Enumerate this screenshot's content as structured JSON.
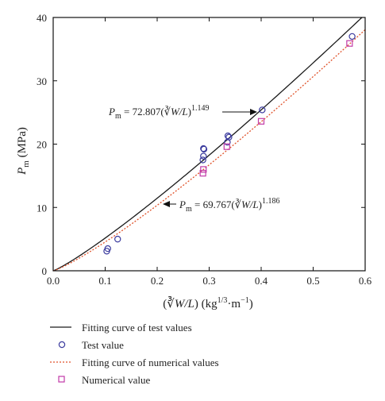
{
  "chart_data": {
    "type": "scatter",
    "xlim": [
      0,
      0.6
    ],
    "ylim": [
      0,
      40
    ],
    "x_ticks": [
      "0.0",
      "0.1",
      "0.2",
      "0.3",
      "0.4",
      "0.5",
      "0.6"
    ],
    "y_ticks": [
      "0",
      "10",
      "20",
      "30",
      "40"
    ],
    "x_tick_values": [
      0,
      0.1,
      0.2,
      0.3,
      0.4,
      0.5,
      0.6
    ],
    "y_tick_values": [
      0,
      10,
      20,
      30,
      40
    ],
    "xlabel": "(∛W/L) (kg1/3·m−1)",
    "ylabel": "Pm (MPa)",
    "grid": false,
    "legend_position": "below",
    "series": [
      {
        "name": "Fitting curve of test values",
        "kind": "line",
        "style": "solid",
        "color": "#1a1a1a",
        "equation": {
          "coef": 72.807,
          "exp": 1.149
        }
      },
      {
        "name": "Test value",
        "kind": "scatter",
        "marker": "circle",
        "color": "#3b3b9e",
        "points": [
          [
            0.103,
            3.1
          ],
          [
            0.105,
            3.5
          ],
          [
            0.124,
            5.0
          ],
          [
            0.288,
            17.5
          ],
          [
            0.289,
            18.1
          ],
          [
            0.289,
            19.3
          ],
          [
            0.29,
            19.2
          ],
          [
            0.335,
            20.3
          ],
          [
            0.336,
            21.3
          ],
          [
            0.338,
            21.1
          ],
          [
            0.402,
            25.4
          ],
          [
            0.575,
            37.0
          ]
        ]
      },
      {
        "name": "Fitting curve of numerical values",
        "kind": "line",
        "style": "dotted",
        "color": "#e0522a",
        "equation": {
          "coef": 69.767,
          "exp": 1.186
        }
      },
      {
        "name": "Numerical value",
        "kind": "scatter",
        "marker": "square",
        "color": "#c23aa8",
        "points": [
          [
            0.288,
            15.4
          ],
          [
            0.289,
            16.0
          ],
          [
            0.334,
            19.6
          ],
          [
            0.4,
            23.6
          ],
          [
            0.57,
            35.9
          ]
        ]
      }
    ],
    "annotations": [
      {
        "text_lhs": "Pm",
        "text_coef": "= 72.807(",
        "text_root": "∛W/L",
        "text_exp": ")1.149",
        "arrow_to": [
          0.405,
          25.4
        ]
      },
      {
        "text_lhs": "Pm",
        "text_coef": "= 69.767(",
        "text_root": "∛W/L",
        "text_exp": ")1.186",
        "arrow_to": [
          0.215,
          10.8
        ]
      }
    ]
  },
  "labels": {
    "ylabel_main": "P",
    "ylabel_sub": "m",
    "ylabel_unit": " (MPa)",
    "xlabel_paren": "(∛",
    "xlabel_var": "W/L",
    "xlabel_close": ")",
    "xlabel_unit": " (kg",
    "xlabel_unit_sup": "1/3",
    "xlabel_unit_mid": "·m",
    "xlabel_unit_sup2": "−1",
    "xlabel_unit_end": ")",
    "annot1_p": "P",
    "annot1_sub": "m",
    "annot1_eq": " = 72.807(",
    "annot1_root": "∛",
    "annot1_var": "W/L",
    "annot1_close": ")",
    "annot1_exp": "1.149",
    "annot2_p": "P",
    "annot2_sub": "m",
    "annot2_eq": " = 69.767(",
    "annot2_root": "∛",
    "annot2_var": "W/L",
    "annot2_close": ")",
    "annot2_exp": "1.186"
  },
  "legend": {
    "items": [
      {
        "label": "Fitting curve of test values",
        "symbol": "solid-line"
      },
      {
        "label": "Test value",
        "symbol": "circle"
      },
      {
        "label": "Fitting curve of numerical values",
        "symbol": "dotted-line"
      },
      {
        "label": "Numerical value",
        "symbol": "square"
      }
    ]
  }
}
